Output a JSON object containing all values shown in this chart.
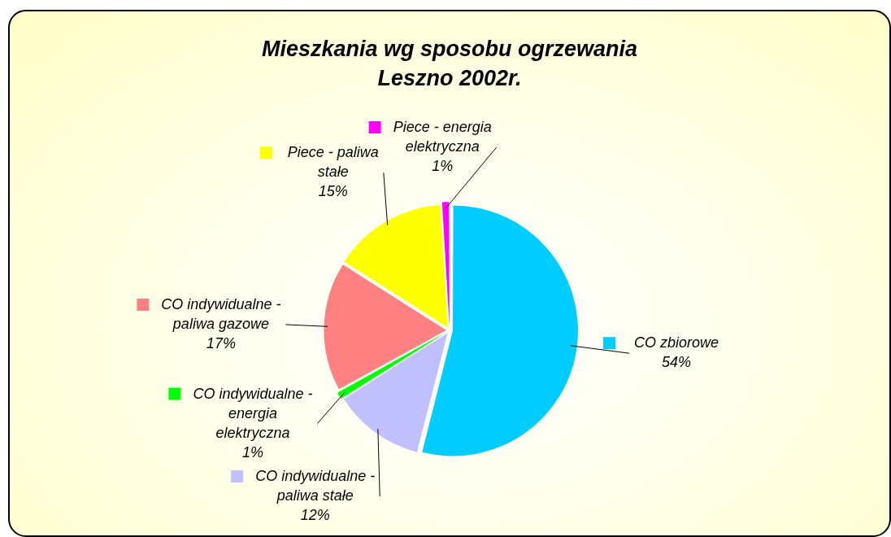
{
  "chart_data": {
    "type": "pie",
    "title": "Mieszkania wg sposobu ogrzewania\nLeszno 2002r.",
    "categories": [
      "CO zbiorowe",
      "CO indywidualne - paliwa stałe",
      "CO indywidualne - energia elektryczna",
      "CO indywidualne - paliwa gazowe",
      "Piece - paliwa stałe",
      "Piece - energia elektryczna"
    ],
    "values": [
      54,
      12,
      1,
      17,
      15,
      1
    ],
    "colors": [
      "#00ccff",
      "#c0c0ff",
      "#00ff00",
      "#ff8080",
      "#ffff00",
      "#ff00ff"
    ],
    "value_labels": [
      "54%",
      "12%",
      "1%",
      "17%",
      "15%",
      "1%"
    ],
    "legend": true
  }
}
